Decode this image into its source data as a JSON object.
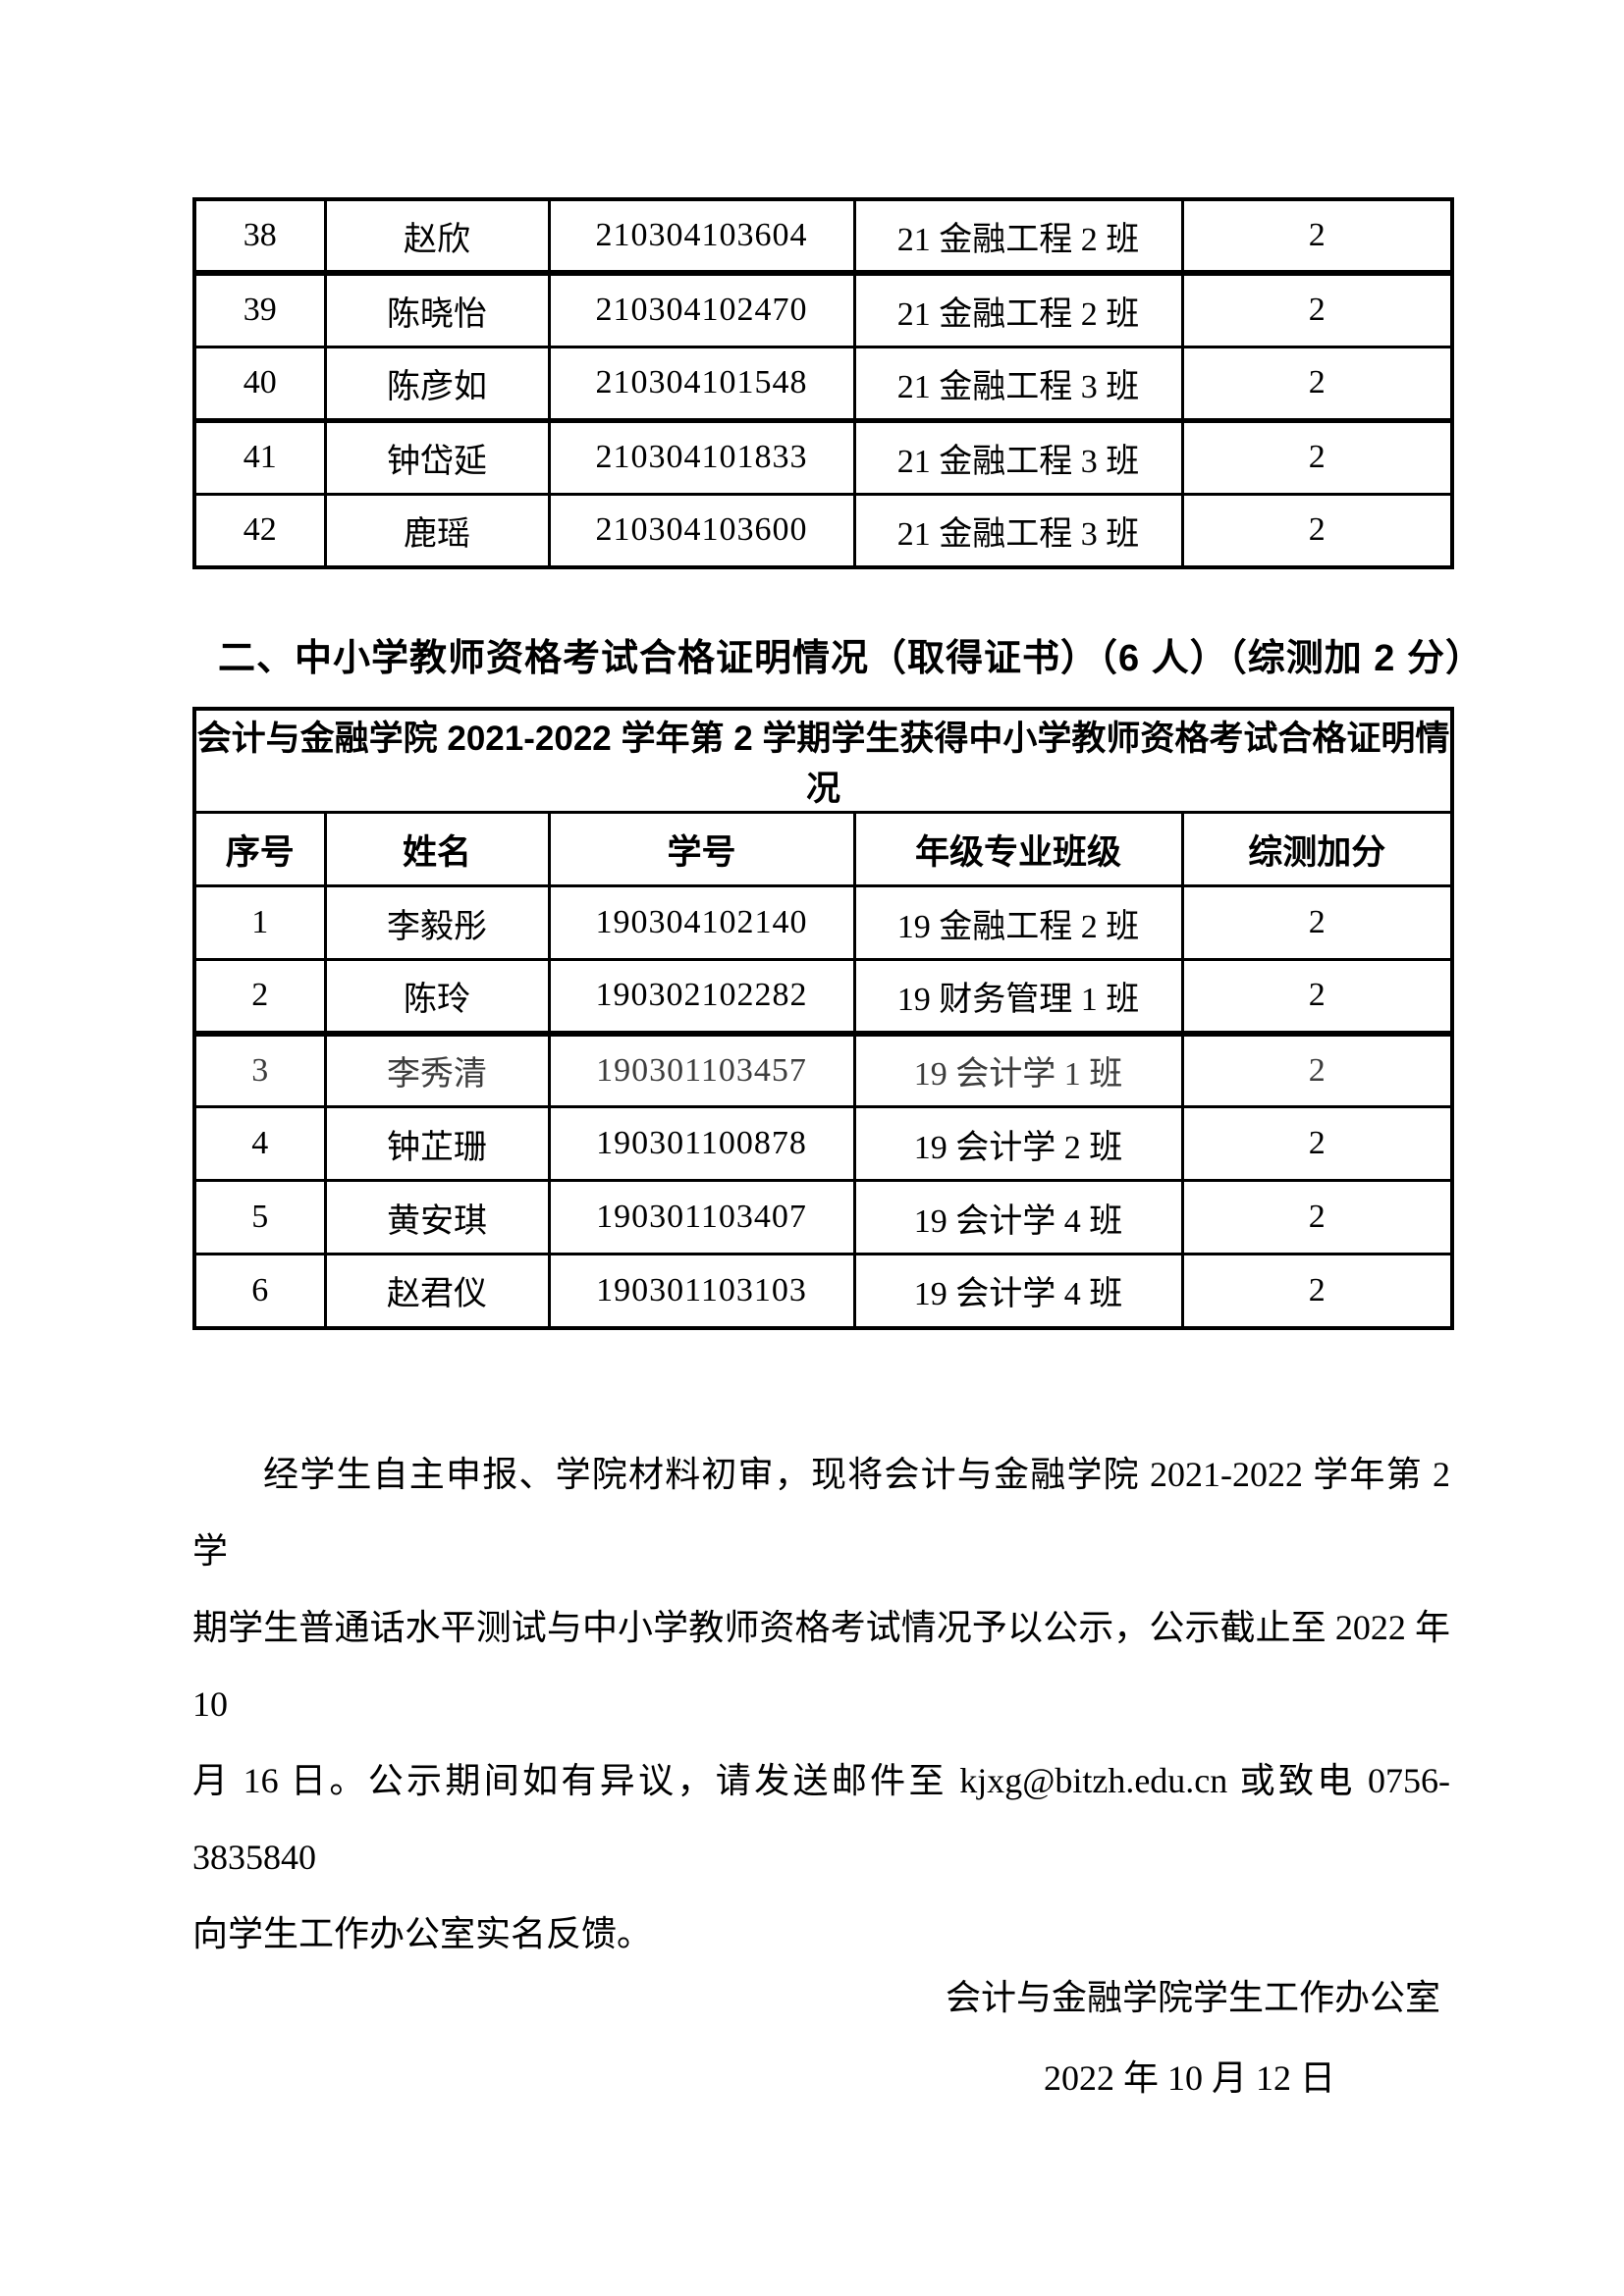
{
  "page": {
    "background_color": "#ffffff",
    "text_color": "#000000",
    "border_color": "#000000"
  },
  "table1": {
    "rows": [
      [
        "38",
        "赵欣",
        "210304103604",
        "21 金融工程 2 班",
        "2"
      ],
      [
        "39",
        "陈晓怡",
        "210304102470",
        "21 金融工程 2 班",
        "2"
      ],
      [
        "40",
        "陈彦如",
        "210304101548",
        "21 金融工程 3 班",
        "2"
      ],
      [
        "41",
        "钟岱延",
        "210304101833",
        "21 金融工程 3 班",
        "2"
      ],
      [
        "42",
        "鹿瑶",
        "210304103600",
        "21 金融工程 3 班",
        "2"
      ]
    ]
  },
  "section_heading": "二、中小学教师资格考试合格证明情况（取得证书）（6 人）（综测加 2 分）",
  "table2": {
    "title": "会计与金融学院 2021-2022 学年第 2 学期学生获得中小学教师资格考试合格证明情况",
    "headers": [
      "序号",
      "姓名",
      "学号",
      "年级专业班级",
      "综测加分"
    ],
    "rows": [
      [
        "1",
        "李毅彤",
        "190304102140",
        "19 金融工程 2 班",
        "2"
      ],
      [
        "2",
        "陈玲",
        "190302102282",
        "19 财务管理 1 班",
        "2"
      ],
      [
        "3",
        "李秀清",
        "190301103457",
        "19 会计学 1 班",
        "2"
      ],
      [
        "4",
        "钟芷珊",
        "190301100878",
        "19 会计学 2 班",
        "2"
      ],
      [
        "5",
        "黄安琪",
        "190301103407",
        "19 会计学 4 班",
        "2"
      ],
      [
        "6",
        "赵君仪",
        "190301103103",
        "19 会计学 4 班",
        "2"
      ]
    ]
  },
  "closing_paragraph": {
    "lines": [
      "经学生自主申报、学院材料初审，现将会计与金融学院 2021-2022 学年第 2 学",
      "期学生普通话水平测试与中小学教师资格考试情况予以公示，公示截止至 2022 年 10",
      "月 16 日。公示期间如有异议，请发送邮件至 kjxg@bitzh.edu.cn 或致电 0756-3835840",
      "向学生工作办公室实名反馈。"
    ]
  },
  "signature": "会计与金融学院学生工作办公室",
  "date": "2022 年 10 月 12 日"
}
